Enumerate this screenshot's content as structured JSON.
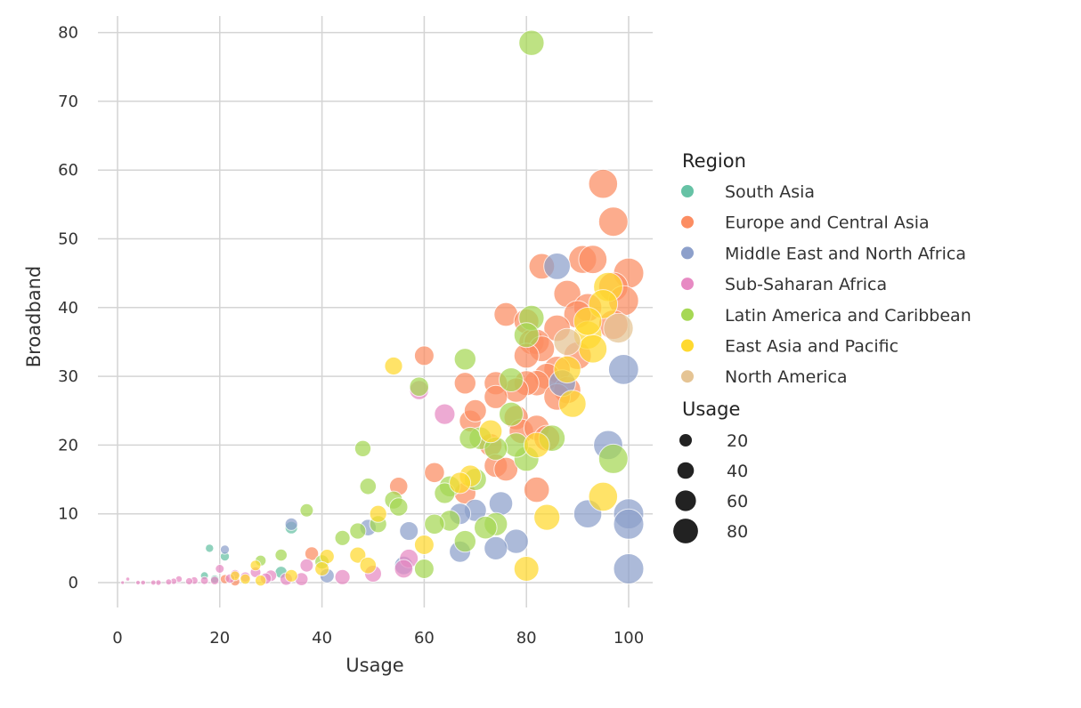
{
  "chart_data": {
    "type": "scatter",
    "xlabel": "Usage",
    "ylabel": "Broadband",
    "xlim": [
      -4,
      104
    ],
    "ylim": [
      -3.5,
      83
    ],
    "xticks": [
      0,
      20,
      40,
      60,
      80,
      100
    ],
    "yticks": [
      0,
      10,
      20,
      30,
      40,
      50,
      60,
      70,
      80
    ],
    "grid": true,
    "legend_placement": "right",
    "hue_legend": {
      "title": "Region",
      "entries": [
        {
          "name": "South Asia",
          "color": "#66c2a5"
        },
        {
          "name": "Europe and Central Asia",
          "color": "#fc8d62"
        },
        {
          "name": "Middle East and North Africa",
          "color": "#8da0cb"
        },
        {
          "name": "Sub-Saharan Africa",
          "color": "#e78ac3"
        },
        {
          "name": "Latin America and Caribbean",
          "color": "#a6d854"
        },
        {
          "name": "East Asia and Pacific",
          "color": "#ffd92f"
        },
        {
          "name": "North America",
          "color": "#e5c494"
        }
      ]
    },
    "size_legend": {
      "title": "Usage",
      "entries": [
        "20",
        "40",
        "60",
        "80"
      ]
    },
    "series": [
      {
        "name": "South Asia",
        "points": [
          [
            18,
            5
          ],
          [
            21,
            3.8
          ],
          [
            17,
            1
          ],
          [
            32,
            1.5
          ],
          [
            34,
            8
          ],
          [
            19,
            0.5
          ]
        ]
      },
      {
        "name": "Europe and Central Asia",
        "points": [
          [
            95,
            58
          ],
          [
            97,
            52.5
          ],
          [
            83,
            46
          ],
          [
            91,
            47
          ],
          [
            93,
            47
          ],
          [
            100,
            45
          ],
          [
            97,
            43
          ],
          [
            88,
            42
          ],
          [
            92,
            40
          ],
          [
            99,
            41
          ],
          [
            76,
            39
          ],
          [
            80,
            38
          ],
          [
            90,
            39
          ],
          [
            97,
            37.5
          ],
          [
            86,
            37
          ],
          [
            81,
            35
          ],
          [
            82,
            35
          ],
          [
            83,
            34
          ],
          [
            80,
            33
          ],
          [
            90,
            33
          ],
          [
            60,
            33
          ],
          [
            86,
            31
          ],
          [
            84,
            30
          ],
          [
            82,
            29
          ],
          [
            80,
            29
          ],
          [
            88,
            28
          ],
          [
            78,
            28
          ],
          [
            74,
            29
          ],
          [
            74,
            27
          ],
          [
            68,
            29
          ],
          [
            86,
            27
          ],
          [
            69,
            23.5
          ],
          [
            70,
            25
          ],
          [
            78,
            24
          ],
          [
            79,
            22
          ],
          [
            82,
            22.5
          ],
          [
            84,
            21
          ],
          [
            73,
            20
          ],
          [
            74,
            17
          ],
          [
            76,
            16.5
          ],
          [
            62,
            16
          ],
          [
            82,
            13.5
          ],
          [
            55,
            14
          ],
          [
            68,
            13
          ],
          [
            38,
            4.2
          ],
          [
            21,
            0.5
          ],
          [
            23,
            0.2
          ]
        ]
      },
      {
        "name": "Middle East and North Africa",
        "points": [
          [
            86,
            46
          ],
          [
            99,
            31
          ],
          [
            96,
            20
          ],
          [
            92,
            10
          ],
          [
            100,
            10
          ],
          [
            100,
            8.5
          ],
          [
            100,
            2
          ],
          [
            87,
            29
          ],
          [
            70,
            10.5
          ],
          [
            75,
            11.5
          ],
          [
            78,
            6
          ],
          [
            74,
            5
          ],
          [
            67,
            4.5
          ],
          [
            67,
            10
          ],
          [
            57,
            7.5
          ],
          [
            49,
            8
          ],
          [
            34,
            8.5
          ],
          [
            21,
            4.8
          ],
          [
            56,
            2.5
          ],
          [
            41,
            1
          ]
        ]
      },
      {
        "name": "Sub-Saharan Africa",
        "points": [
          [
            59,
            28
          ],
          [
            64,
            24.5
          ],
          [
            57,
            3.5
          ],
          [
            56,
            2
          ],
          [
            50,
            1.3
          ],
          [
            44,
            0.8
          ],
          [
            37,
            2.5
          ],
          [
            36,
            0.5
          ],
          [
            33,
            0.5
          ],
          [
            30,
            1
          ],
          [
            29,
            0.6
          ],
          [
            27,
            1.5
          ],
          [
            25,
            0.8
          ],
          [
            23,
            1.2
          ],
          [
            22,
            0.6
          ],
          [
            20,
            2
          ],
          [
            19,
            0.3
          ],
          [
            17,
            0.3
          ],
          [
            15,
            0.3
          ],
          [
            14,
            0.2
          ],
          [
            12,
            0.5
          ],
          [
            11,
            0.2
          ],
          [
            10,
            0.1
          ],
          [
            8,
            0
          ],
          [
            7,
            0
          ],
          [
            5,
            0
          ],
          [
            4,
            0
          ],
          [
            2,
            0.5
          ],
          [
            1,
            0
          ]
        ]
      },
      {
        "name": "Latin America and Caribbean",
        "points": [
          [
            81,
            78.5
          ],
          [
            81,
            38.5
          ],
          [
            80,
            36
          ],
          [
            68,
            32.5
          ],
          [
            77,
            29.5
          ],
          [
            59,
            28.5
          ],
          [
            77,
            24.5
          ],
          [
            85,
            21
          ],
          [
            71,
            21
          ],
          [
            69,
            21
          ],
          [
            80,
            18
          ],
          [
            97,
            18
          ],
          [
            78,
            20
          ],
          [
            74,
            19.5
          ],
          [
            48,
            19.5
          ],
          [
            70,
            15
          ],
          [
            65,
            14
          ],
          [
            49,
            14
          ],
          [
            64,
            13
          ],
          [
            54,
            12
          ],
          [
            37,
            10.5
          ],
          [
            55,
            11
          ],
          [
            65,
            9
          ],
          [
            74,
            8.5
          ],
          [
            72,
            8
          ],
          [
            62,
            8.5
          ],
          [
            51,
            8.5
          ],
          [
            47,
            7.5
          ],
          [
            44,
            6.5
          ],
          [
            68,
            6
          ],
          [
            60,
            2
          ],
          [
            32,
            4
          ],
          [
            28,
            3.2
          ],
          [
            40,
            3
          ]
        ]
      },
      {
        "name": "East Asia and Pacific",
        "points": [
          [
            96,
            43
          ],
          [
            95,
            40.5
          ],
          [
            92,
            36
          ],
          [
            93,
            34
          ],
          [
            88,
            31
          ],
          [
            92,
            38
          ],
          [
            89,
            26
          ],
          [
            73,
            22
          ],
          [
            54,
            31.5
          ],
          [
            82,
            20
          ],
          [
            69,
            15.5
          ],
          [
            67,
            14.5
          ],
          [
            95,
            12.5
          ],
          [
            84,
            9.5
          ],
          [
            51,
            10
          ],
          [
            60,
            5.5
          ],
          [
            47,
            4
          ],
          [
            41,
            3.8
          ],
          [
            40,
            2
          ],
          [
            49,
            2.5
          ],
          [
            80,
            2
          ],
          [
            34,
            1
          ],
          [
            27,
            2.5
          ],
          [
            23,
            1
          ],
          [
            25,
            0.5
          ],
          [
            28,
            0.3
          ]
        ]
      },
      {
        "name": "North America",
        "points": [
          [
            98,
            37
          ],
          [
            88,
            35
          ]
        ]
      }
    ]
  }
}
